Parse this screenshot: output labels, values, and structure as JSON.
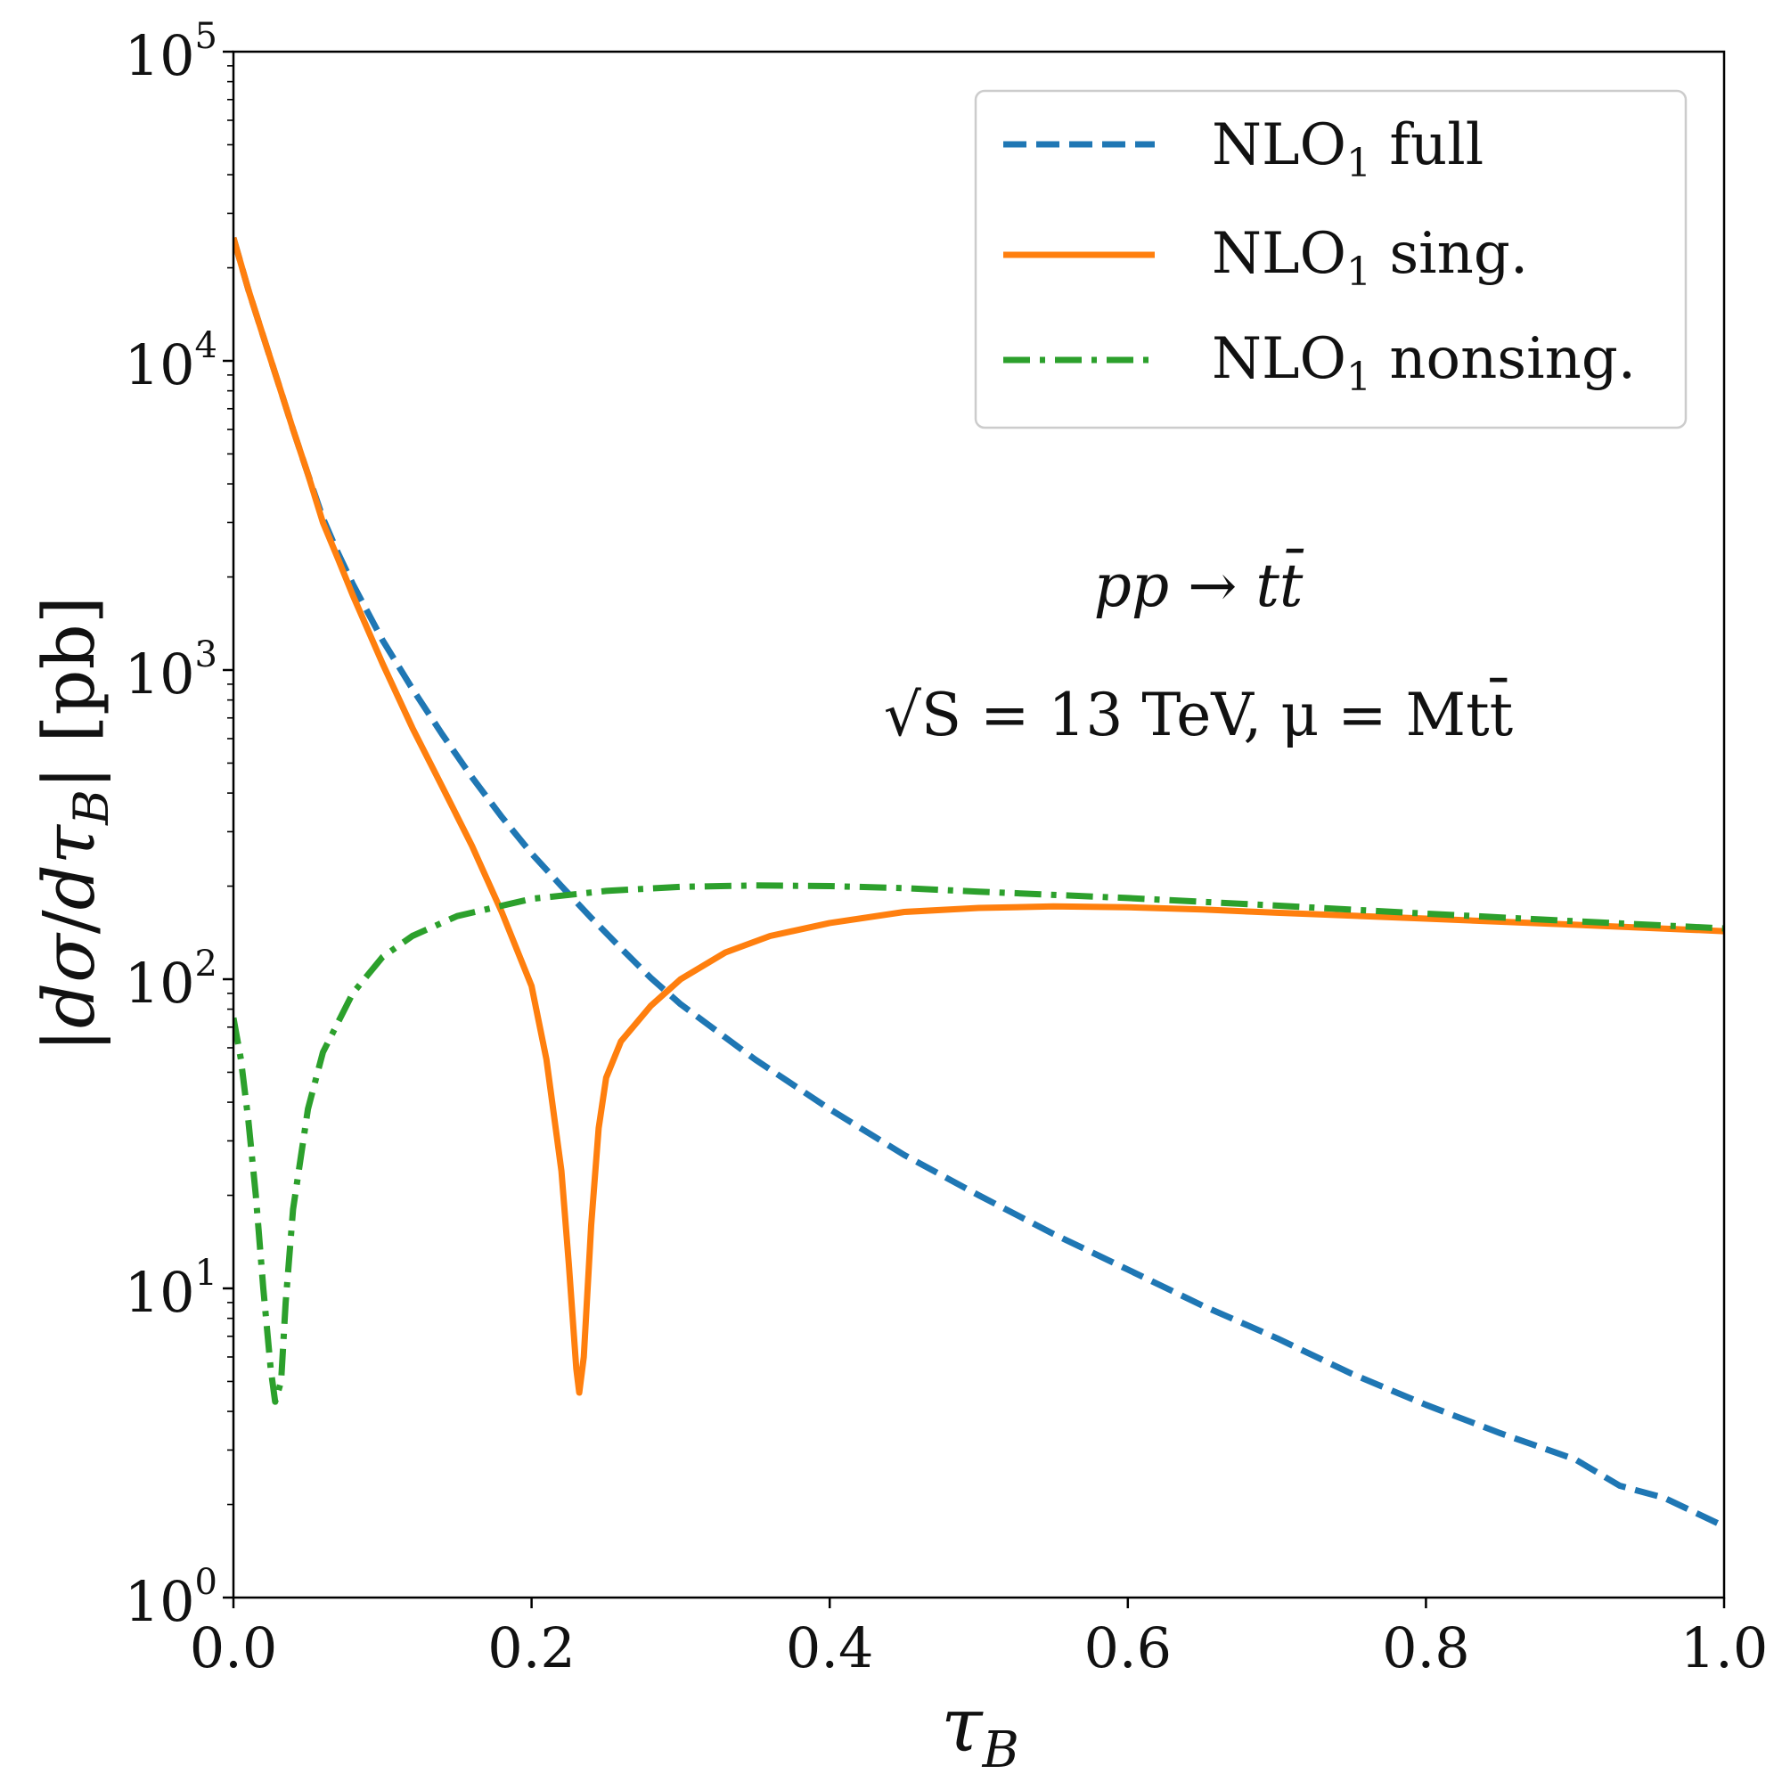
{
  "chart_data": {
    "type": "line",
    "title": "",
    "xlabel": "τB",
    "ylabel": "|dσ/dτB| [pb]",
    "xscale": "linear",
    "yscale": "log",
    "xlim": [
      0.0,
      1.0
    ],
    "ylim": [
      1,
      100000
    ],
    "x_ticks": [
      0.0,
      0.2,
      0.4,
      0.6,
      0.8,
      1.0
    ],
    "x_tick_labels": [
      "0.0",
      "0.2",
      "0.4",
      "0.6",
      "0.8",
      "1.0"
    ],
    "y_ticks": [
      1,
      10,
      100,
      1000,
      10000,
      100000
    ],
    "y_tick_labels": [
      {
        "base": "10",
        "exp": "0"
      },
      {
        "base": "10",
        "exp": "1"
      },
      {
        "base": "10",
        "exp": "2"
      },
      {
        "base": "10",
        "exp": "3"
      },
      {
        "base": "10",
        "exp": "4"
      },
      {
        "base": "10",
        "exp": "5"
      }
    ],
    "legend_position": "top-right",
    "annotations": [
      "pp → tt̄",
      "√S = 13 TeV, μ = Mtt̄"
    ],
    "series": [
      {
        "name": "NLO1 full",
        "legend_base": "NLO",
        "legend_sub": "1",
        "legend_rest": " full",
        "color": "#1f77b4",
        "style": "dashed",
        "points": [
          [
            0.0,
            25000
          ],
          [
            0.01,
            17000
          ],
          [
            0.02,
            12000
          ],
          [
            0.03,
            8500
          ],
          [
            0.04,
            6000
          ],
          [
            0.05,
            4300
          ],
          [
            0.06,
            3100
          ],
          [
            0.07,
            2400
          ],
          [
            0.08,
            1900
          ],
          [
            0.1,
            1250
          ],
          [
            0.12,
            870
          ],
          [
            0.14,
            620
          ],
          [
            0.16,
            450
          ],
          [
            0.18,
            335
          ],
          [
            0.2,
            255
          ],
          [
            0.22,
            200
          ],
          [
            0.24,
            158
          ],
          [
            0.26,
            126
          ],
          [
            0.28,
            101
          ],
          [
            0.3,
            83
          ],
          [
            0.35,
            55
          ],
          [
            0.4,
            38
          ],
          [
            0.45,
            27
          ],
          [
            0.5,
            20
          ],
          [
            0.55,
            15
          ],
          [
            0.6,
            11.5
          ],
          [
            0.65,
            8.8
          ],
          [
            0.7,
            6.9
          ],
          [
            0.75,
            5.3
          ],
          [
            0.8,
            4.2
          ],
          [
            0.85,
            3.4
          ],
          [
            0.9,
            2.8
          ],
          [
            0.93,
            2.3
          ],
          [
            0.96,
            2.1
          ],
          [
            1.0,
            1.7
          ]
        ]
      },
      {
        "name": "NLO1 sing.",
        "legend_base": "NLO",
        "legend_sub": "1",
        "legend_rest": " sing.",
        "color": "#ff7f0e",
        "style": "solid",
        "points": [
          [
            0.0,
            25000
          ],
          [
            0.01,
            17000
          ],
          [
            0.02,
            12000
          ],
          [
            0.03,
            8500
          ],
          [
            0.04,
            6000
          ],
          [
            0.05,
            4300
          ],
          [
            0.06,
            3000
          ],
          [
            0.07,
            2300
          ],
          [
            0.08,
            1750
          ],
          [
            0.1,
            1050
          ],
          [
            0.12,
            650
          ],
          [
            0.14,
            420
          ],
          [
            0.16,
            270
          ],
          [
            0.18,
            165
          ],
          [
            0.2,
            95
          ],
          [
            0.21,
            55
          ],
          [
            0.22,
            24
          ],
          [
            0.225,
            12
          ],
          [
            0.23,
            5.5
          ],
          [
            0.232,
            4.6
          ],
          [
            0.235,
            6
          ],
          [
            0.24,
            16
          ],
          [
            0.245,
            33
          ],
          [
            0.25,
            48
          ],
          [
            0.26,
            63
          ],
          [
            0.28,
            82
          ],
          [
            0.3,
            100
          ],
          [
            0.33,
            122
          ],
          [
            0.36,
            138
          ],
          [
            0.4,
            152
          ],
          [
            0.45,
            165
          ],
          [
            0.5,
            170
          ],
          [
            0.55,
            172
          ],
          [
            0.6,
            171
          ],
          [
            0.65,
            168
          ],
          [
            0.7,
            164
          ],
          [
            0.8,
            157
          ],
          [
            0.9,
            150
          ],
          [
            1.0,
            143
          ]
        ]
      },
      {
        "name": "NLO1 nonsing.",
        "legend_base": "NLO",
        "legend_sub": "1",
        "legend_rest": " nonsing.",
        "color": "#2ca02c",
        "style": "dashdot",
        "points": [
          [
            0.0,
            75
          ],
          [
            0.005,
            55
          ],
          [
            0.01,
            35
          ],
          [
            0.015,
            20
          ],
          [
            0.02,
            10
          ],
          [
            0.025,
            5.5
          ],
          [
            0.028,
            4.3
          ],
          [
            0.032,
            5
          ],
          [
            0.035,
            9
          ],
          [
            0.04,
            18
          ],
          [
            0.05,
            38
          ],
          [
            0.06,
            58
          ],
          [
            0.08,
            90
          ],
          [
            0.1,
            118
          ],
          [
            0.12,
            138
          ],
          [
            0.15,
            160
          ],
          [
            0.2,
            182
          ],
          [
            0.25,
            193
          ],
          [
            0.3,
            199
          ],
          [
            0.35,
            201
          ],
          [
            0.4,
            200
          ],
          [
            0.45,
            197
          ],
          [
            0.5,
            192
          ],
          [
            0.6,
            183
          ],
          [
            0.7,
            173
          ],
          [
            0.8,
            163
          ],
          [
            0.9,
            154
          ],
          [
            1.0,
            146
          ]
        ]
      }
    ]
  }
}
